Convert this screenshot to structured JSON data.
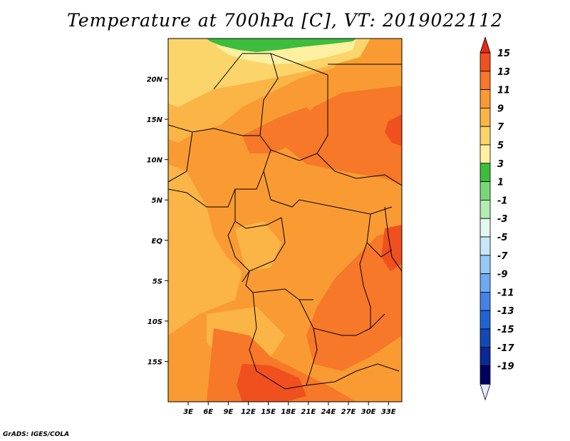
{
  "title": "Temperature at 700hPa [C], VT: 2019022112",
  "credit": "GrADS: IGES/COLA",
  "map": {
    "lon_range": [
      0,
      35
    ],
    "lat_range": [
      -20,
      25
    ],
    "x_ticks": [
      3,
      6,
      9,
      12,
      15,
      18,
      21,
      24,
      27,
      30,
      33
    ],
    "x_tick_labels": [
      "3E",
      "6E",
      "9E",
      "12E",
      "15E",
      "18E",
      "21E",
      "24E",
      "27E",
      "30E",
      "33E"
    ],
    "y_ticks": [
      20,
      15,
      10,
      5,
      0,
      -5,
      -10,
      -15
    ],
    "y_tick_labels": [
      "20N",
      "15N",
      "10N",
      "5N",
      "EQ",
      "5S",
      "10S",
      "15S"
    ]
  },
  "colorbar": {
    "levels": [
      15,
      13,
      11,
      9,
      7,
      5,
      3,
      1,
      -1,
      -3,
      -5,
      -7,
      -9,
      -11,
      -13,
      -15,
      -17,
      -19
    ],
    "level_labels": [
      "15",
      "13",
      "11",
      "9",
      "7",
      "5",
      "3",
      "1",
      "-1",
      "-3",
      "-5",
      "-7",
      "-9",
      "-11",
      "-13",
      "-15",
      "-17",
      "-19"
    ],
    "colors": [
      "#e62814",
      "#f0501e",
      "#f67828",
      "#f99b32",
      "#fbb446",
      "#fcd56a",
      "#fdf0a0",
      "#3cbe3c",
      "#78d878",
      "#b4ecb4",
      "#e2f8f0",
      "#c8e6f8",
      "#96c8f5",
      "#6eaaf0",
      "#4682e6",
      "#1e64d2",
      "#1448b4",
      "#0a2896",
      "#000060",
      "#e6e6ff"
    ]
  }
}
